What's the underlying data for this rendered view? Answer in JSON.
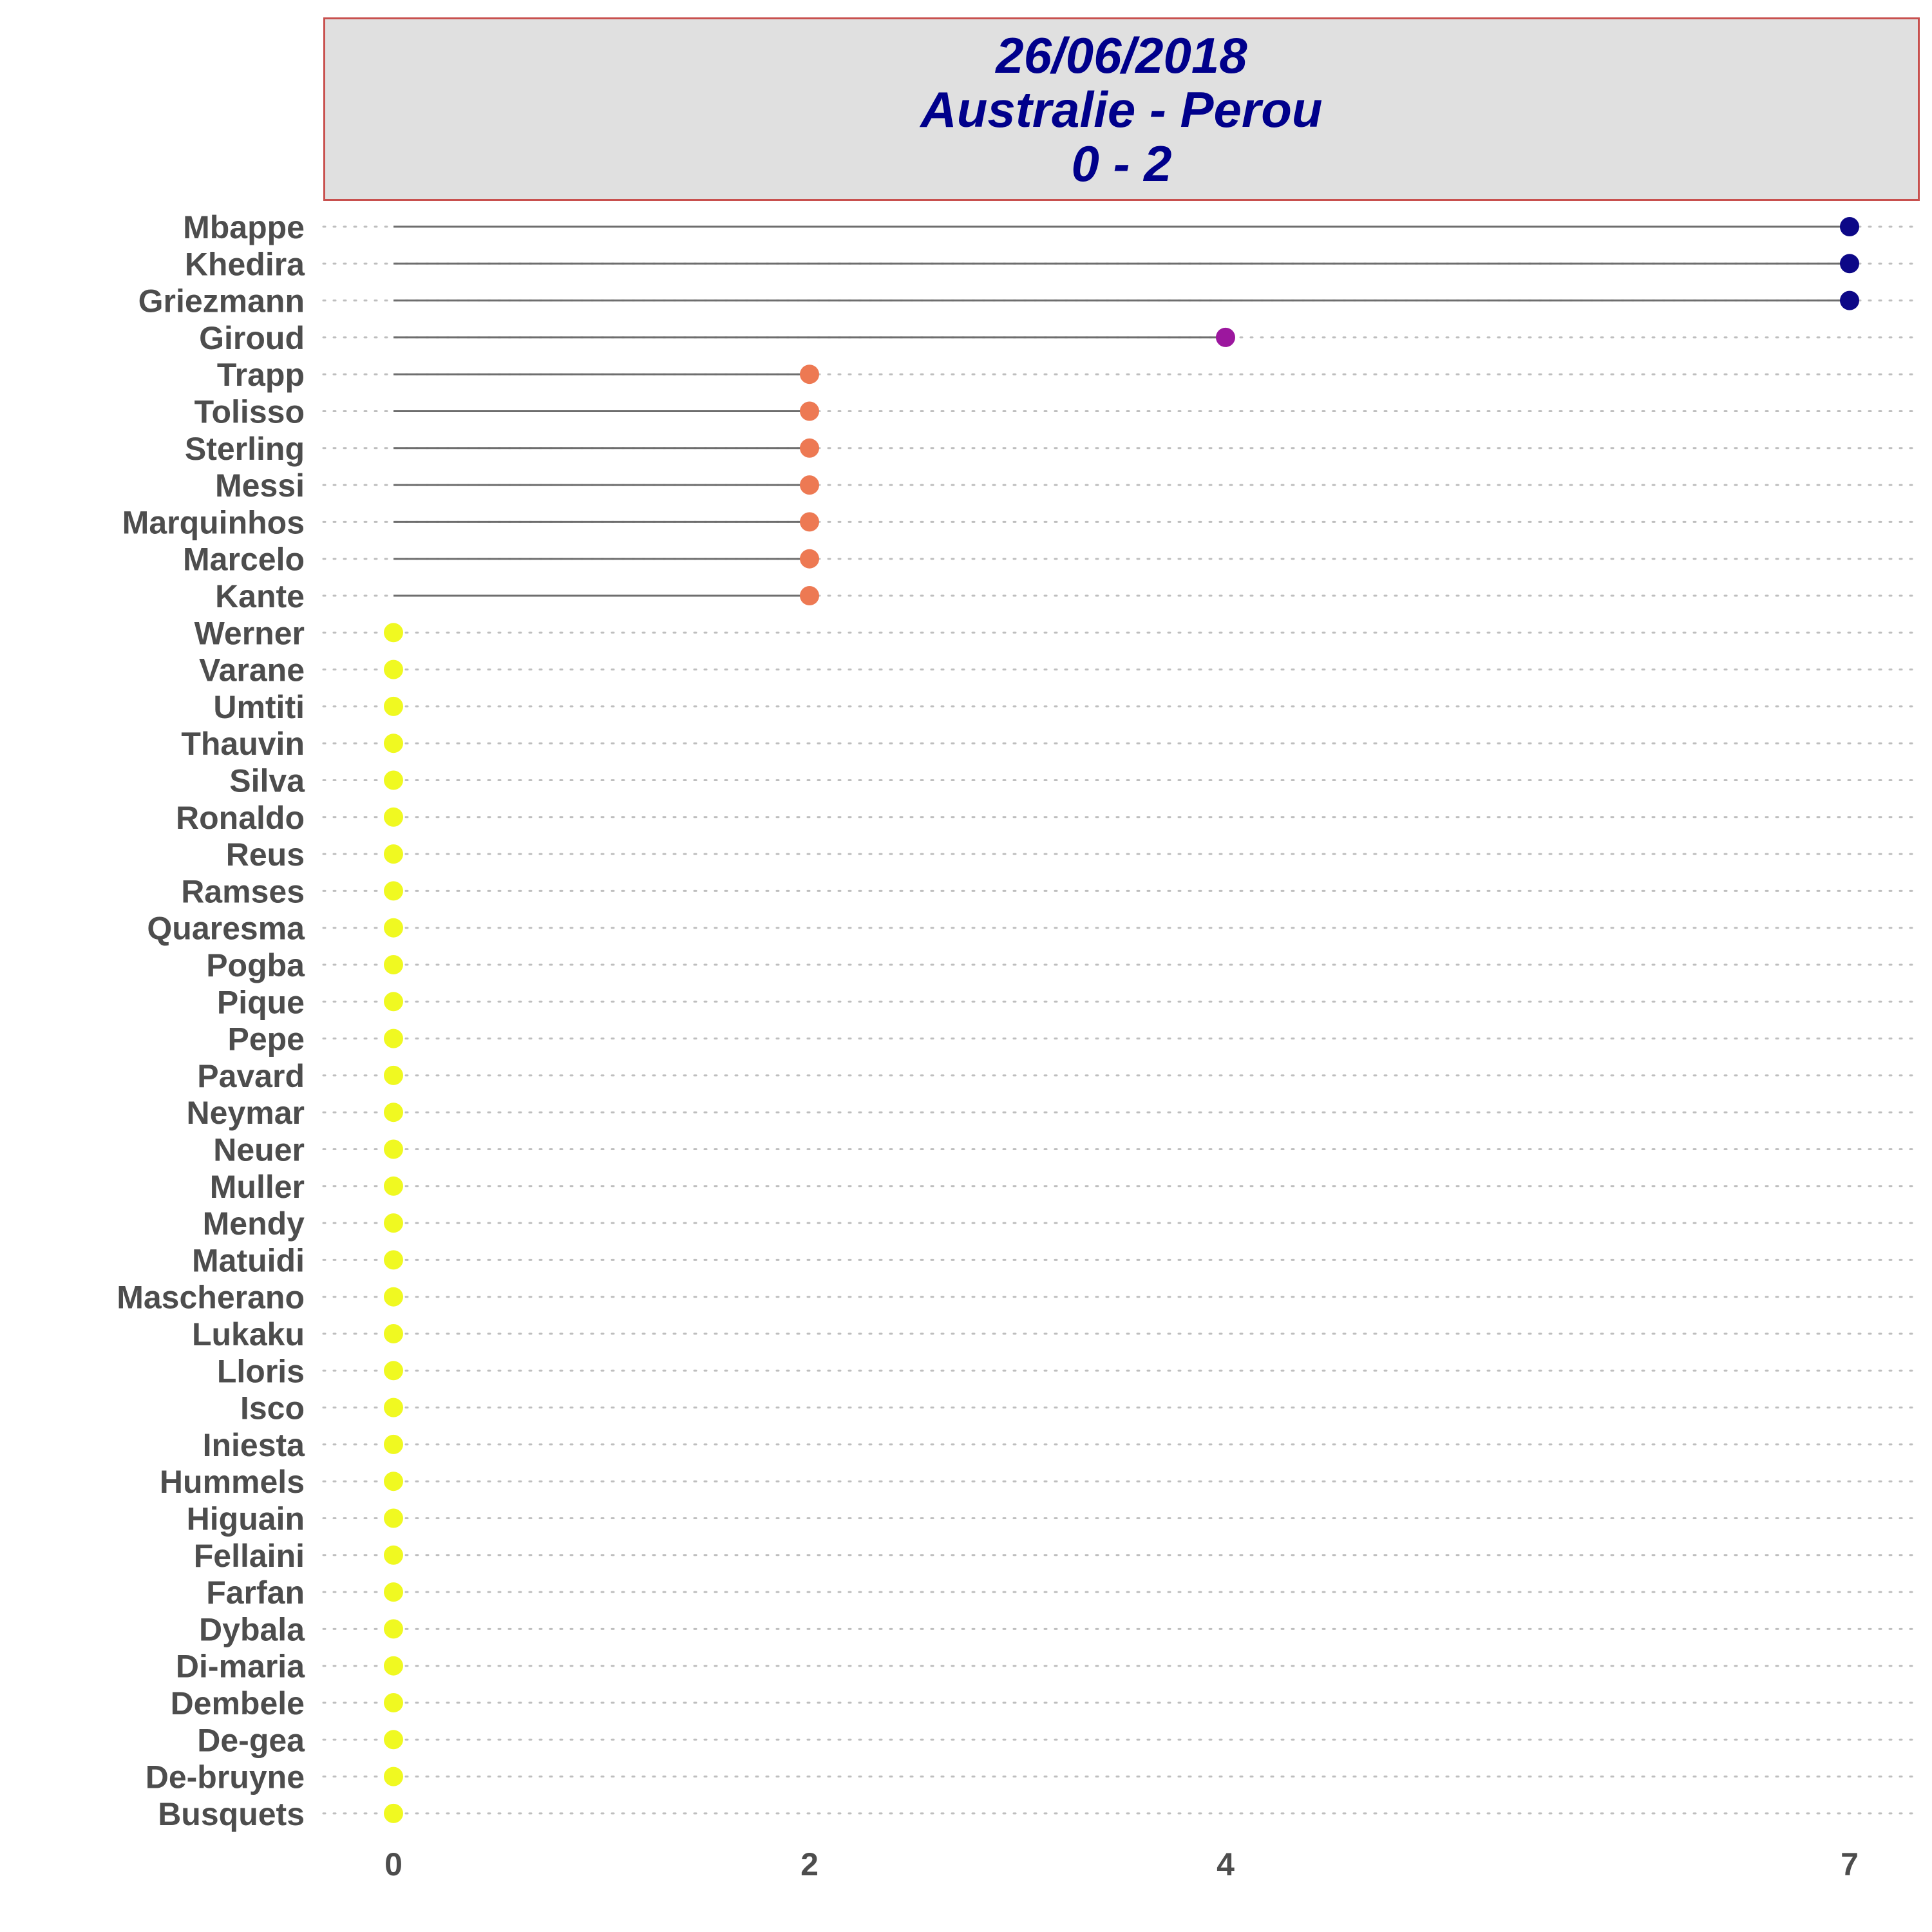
{
  "chart_data": {
    "type": "lollipop",
    "title_lines": [
      "26/06/2018",
      "Australie - Perou",
      "0 - 2"
    ],
    "x_ticks": [
      0,
      2,
      4,
      7
    ],
    "xlim": [
      -0.35,
      7.35
    ],
    "grid": "dotted horizontal",
    "colors": {
      "7": "#0d0887",
      "4": "#9c179e",
      "2": "#ed7953",
      "0": "#f0f921"
    },
    "players": [
      "Mbappe",
      "Khedira",
      "Griezmann",
      "Giroud",
      "Trapp",
      "Tolisso",
      "Sterling",
      "Messi",
      "Marquinhos",
      "Marcelo",
      "Kante",
      "Werner",
      "Varane",
      "Umtiti",
      "Thauvin",
      "Silva",
      "Ronaldo",
      "Reus",
      "Ramses",
      "Quaresma",
      "Pogba",
      "Pique",
      "Pepe",
      "Pavard",
      "Neymar",
      "Neuer",
      "Muller",
      "Mendy",
      "Matuidi",
      "Mascherano",
      "Lukaku",
      "Lloris",
      "Isco",
      "Iniesta",
      "Hummels",
      "Higuain",
      "Fellaini",
      "Farfan",
      "Dybala",
      "Di-maria",
      "Dembele",
      "De-gea",
      "De-bruyne",
      "Busquets"
    ],
    "values": [
      7,
      7,
      7,
      4,
      2,
      2,
      2,
      2,
      2,
      2,
      2,
      0,
      0,
      0,
      0,
      0,
      0,
      0,
      0,
      0,
      0,
      0,
      0,
      0,
      0,
      0,
      0,
      0,
      0,
      0,
      0,
      0,
      0,
      0,
      0,
      0,
      0,
      0,
      0,
      0,
      0,
      0,
      0,
      0
    ]
  }
}
